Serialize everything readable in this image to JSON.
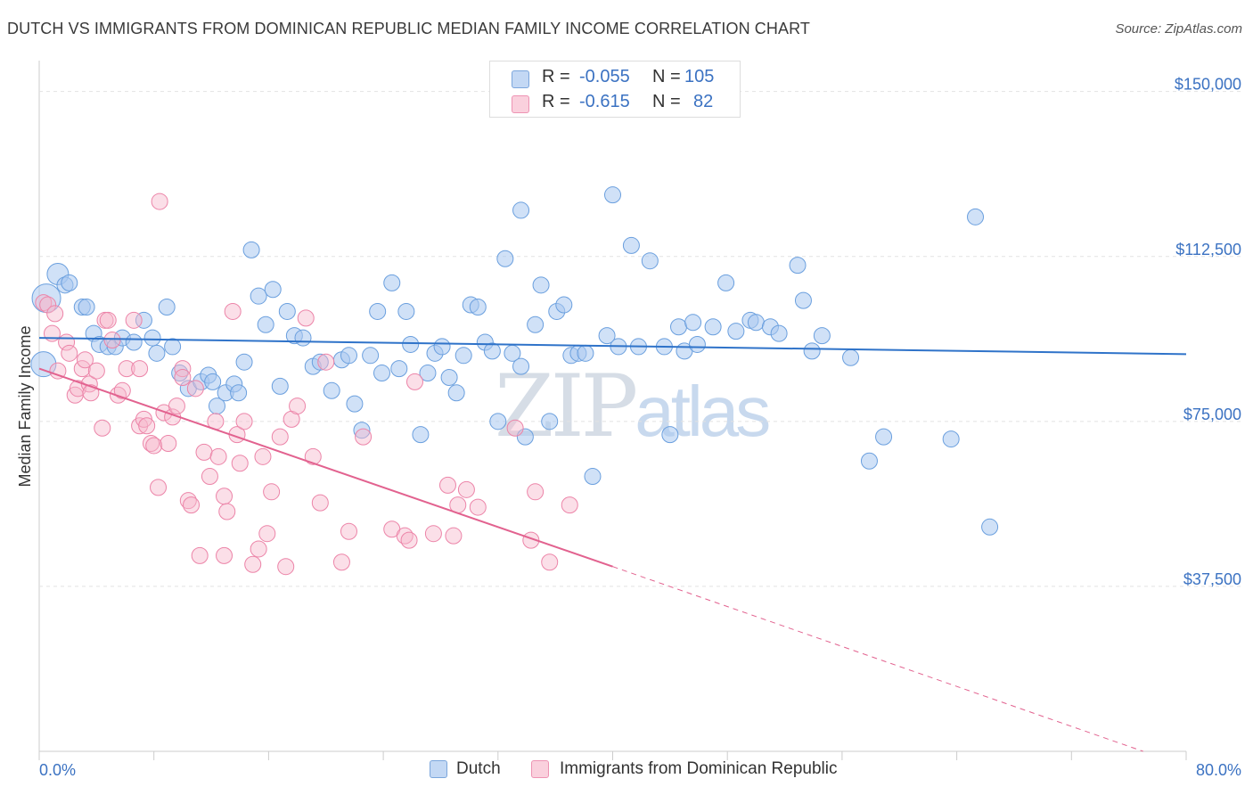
{
  "header": {
    "title": "DUTCH VS IMMIGRANTS FROM DOMINICAN REPUBLIC MEDIAN FAMILY INCOME CORRELATION CHART",
    "source": "Source: ZipAtlas.com"
  },
  "watermark": {
    "zip": "ZIP",
    "atlas": "atlas"
  },
  "legend": {
    "rows": [
      {
        "r_label": "R =",
        "r_value": "-0.055",
        "n_label": "N =",
        "n_value": "105",
        "color": "#a9c8f0"
      },
      {
        "r_label": "R =",
        "r_value": "-0.615",
        "n_label": "N =",
        "n_value": "82",
        "color": "#f6b8cc"
      }
    ]
  },
  "bottom_legend": {
    "items": [
      {
        "label": "Dutch",
        "color": "#a9c8f0"
      },
      {
        "label": "Immigrants from Dominican Republic",
        "color": "#f6b8cc"
      }
    ]
  },
  "chart_data": {
    "type": "scatter",
    "title": "DUTCH VS IMMIGRANTS FROM DOMINICAN REPUBLIC MEDIAN FAMILY INCOME CORRELATION CHART",
    "xlabel": "",
    "ylabel": "Median Family Income",
    "xlim": [
      0,
      80
    ],
    "ylim": [
      0,
      155000
    ],
    "x_tick_labels": [
      "0.0%",
      "80.0%"
    ],
    "y_ticks": [
      37500,
      75000,
      112500,
      150000
    ],
    "y_tick_labels": [
      "$37,500",
      "$75,000",
      "$112,500",
      "$150,000"
    ],
    "grid": true,
    "colors": {
      "dutch": "#6a9fde",
      "dominican": "#ec84a8",
      "dutch_line": "#2f73c9",
      "dominican_line": "#e2628f",
      "tick_label": "#3b72c2"
    },
    "series": [
      {
        "name": "Dutch",
        "trend": {
          "x": [
            0,
            80
          ],
          "y": [
            94000,
            90300
          ]
        },
        "points": [
          [
            0.3,
            88000
          ],
          [
            0.5,
            103000
          ],
          [
            1.3,
            108500
          ],
          [
            1.8,
            106000
          ],
          [
            2.1,
            106500
          ],
          [
            3.0,
            101000
          ],
          [
            3.3,
            101000
          ],
          [
            3.8,
            95000
          ],
          [
            4.2,
            92500
          ],
          [
            4.8,
            92000
          ],
          [
            5.3,
            92000
          ],
          [
            5.8,
            94000
          ],
          [
            6.6,
            93000
          ],
          [
            7.3,
            98000
          ],
          [
            7.9,
            94000
          ],
          [
            8.2,
            90500
          ],
          [
            8.9,
            101000
          ],
          [
            9.3,
            92000
          ],
          [
            9.8,
            86000
          ],
          [
            10.4,
            82500
          ],
          [
            11.3,
            84000
          ],
          [
            11.8,
            85500
          ],
          [
            12.1,
            84000
          ],
          [
            12.4,
            78500
          ],
          [
            13.0,
            81500
          ],
          [
            13.6,
            83500
          ],
          [
            13.9,
            81500
          ],
          [
            14.3,
            88500
          ],
          [
            14.8,
            114000
          ],
          [
            15.3,
            103500
          ],
          [
            15.8,
            97000
          ],
          [
            16.3,
            105000
          ],
          [
            16.8,
            83000
          ],
          [
            17.3,
            100000
          ],
          [
            17.8,
            94500
          ],
          [
            18.4,
            94000
          ],
          [
            19.1,
            87500
          ],
          [
            19.6,
            88500
          ],
          [
            20.4,
            82000
          ],
          [
            21.1,
            89000
          ],
          [
            21.6,
            90000
          ],
          [
            22.0,
            79000
          ],
          [
            22.5,
            73000
          ],
          [
            23.1,
            90000
          ],
          [
            23.6,
            100000
          ],
          [
            23.9,
            86000
          ],
          [
            24.6,
            106500
          ],
          [
            25.1,
            87000
          ],
          [
            25.6,
            100000
          ],
          [
            25.9,
            92500
          ],
          [
            26.6,
            72000
          ],
          [
            27.1,
            86000
          ],
          [
            27.6,
            90500
          ],
          [
            28.1,
            92000
          ],
          [
            28.6,
            85000
          ],
          [
            29.1,
            81500
          ],
          [
            29.6,
            90000
          ],
          [
            30.1,
            101500
          ],
          [
            30.6,
            101000
          ],
          [
            31.1,
            93000
          ],
          [
            31.6,
            91000
          ],
          [
            32.0,
            75000
          ],
          [
            32.5,
            112000
          ],
          [
            33.0,
            90500
          ],
          [
            33.6,
            87500
          ],
          [
            34.6,
            97000
          ],
          [
            35.0,
            106000
          ],
          [
            35.6,
            75000
          ],
          [
            36.1,
            100000
          ],
          [
            36.6,
            101500
          ],
          [
            37.1,
            90000
          ],
          [
            37.6,
            90500
          ],
          [
            38.1,
            90500
          ],
          [
            38.6,
            62500
          ],
          [
            39.6,
            94500
          ],
          [
            40.0,
            126500
          ],
          [
            40.4,
            92000
          ],
          [
            41.3,
            115000
          ],
          [
            41.8,
            92000
          ],
          [
            42.6,
            111500
          ],
          [
            43.6,
            92000
          ],
          [
            44.0,
            72000
          ],
          [
            44.6,
            96500
          ],
          [
            45.0,
            91000
          ],
          [
            45.6,
            97500
          ],
          [
            45.9,
            92500
          ],
          [
            47.0,
            96500
          ],
          [
            47.9,
            106500
          ],
          [
            48.6,
            95500
          ],
          [
            49.6,
            98000
          ],
          [
            50.0,
            97500
          ],
          [
            51.0,
            96500
          ],
          [
            51.6,
            95000
          ],
          [
            52.9,
            110500
          ],
          [
            53.3,
            102500
          ],
          [
            53.9,
            91000
          ],
          [
            54.6,
            94500
          ],
          [
            56.6,
            89500
          ],
          [
            57.9,
            66000
          ],
          [
            58.9,
            71500
          ],
          [
            63.6,
            71000
          ],
          [
            65.3,
            121500
          ],
          [
            66.3,
            51000
          ],
          [
            33.6,
            123000
          ],
          [
            33.9,
            71500
          ]
        ]
      },
      {
        "name": "Immigrants from Dominican Republic",
        "trend": {
          "x": [
            0,
            40
          ],
          "y": [
            87000,
            42000
          ],
          "dashed_to": {
            "x": 77,
            "y": 0
          }
        },
        "points": [
          [
            0.3,
            102000
          ],
          [
            0.6,
            101500
          ],
          [
            0.9,
            95000
          ],
          [
            1.1,
            99500
          ],
          [
            1.3,
            86500
          ],
          [
            1.9,
            93000
          ],
          [
            2.1,
            90500
          ],
          [
            2.5,
            81000
          ],
          [
            2.7,
            82500
          ],
          [
            3.0,
            87000
          ],
          [
            3.2,
            89000
          ],
          [
            3.5,
            83500
          ],
          [
            3.6,
            81500
          ],
          [
            4.0,
            86500
          ],
          [
            4.4,
            73500
          ],
          [
            4.6,
            98000
          ],
          [
            4.8,
            98000
          ],
          [
            5.1,
            93500
          ],
          [
            5.5,
            81000
          ],
          [
            5.8,
            82000
          ],
          [
            6.1,
            87000
          ],
          [
            6.6,
            98000
          ],
          [
            7.0,
            74000
          ],
          [
            7.3,
            75500
          ],
          [
            7.5,
            74000
          ],
          [
            7.8,
            70000
          ],
          [
            8.0,
            69500
          ],
          [
            8.3,
            60000
          ],
          [
            8.7,
            77000
          ],
          [
            9.0,
            70000
          ],
          [
            9.3,
            76000
          ],
          [
            9.6,
            78500
          ],
          [
            10.0,
            87000
          ],
          [
            10.4,
            57000
          ],
          [
            10.6,
            56000
          ],
          [
            10.9,
            82500
          ],
          [
            11.2,
            44500
          ],
          [
            11.5,
            68000
          ],
          [
            11.9,
            62500
          ],
          [
            12.3,
            75000
          ],
          [
            12.5,
            67000
          ],
          [
            12.9,
            44500
          ],
          [
            12.9,
            58000
          ],
          [
            13.1,
            54500
          ],
          [
            13.5,
            100000
          ],
          [
            13.8,
            72000
          ],
          [
            14.0,
            65500
          ],
          [
            14.3,
            75000
          ],
          [
            14.9,
            42500
          ],
          [
            15.3,
            46000
          ],
          [
            15.6,
            67000
          ],
          [
            15.9,
            49500
          ],
          [
            16.2,
            59000
          ],
          [
            16.8,
            71500
          ],
          [
            17.2,
            42000
          ],
          [
            17.6,
            75500
          ],
          [
            18.0,
            78500
          ],
          [
            18.6,
            98500
          ],
          [
            19.1,
            67000
          ],
          [
            19.6,
            56500
          ],
          [
            20.0,
            88500
          ],
          [
            21.1,
            43000
          ],
          [
            21.6,
            50000
          ],
          [
            22.6,
            71500
          ],
          [
            24.6,
            50500
          ],
          [
            25.5,
            49000
          ],
          [
            25.8,
            48000
          ],
          [
            26.2,
            84000
          ],
          [
            27.5,
            49500
          ],
          [
            28.5,
            60500
          ],
          [
            28.9,
            49000
          ],
          [
            29.2,
            56000
          ],
          [
            29.8,
            59500
          ],
          [
            30.6,
            55500
          ],
          [
            33.2,
            73500
          ],
          [
            34.3,
            48000
          ],
          [
            34.6,
            59000
          ],
          [
            35.6,
            43000
          ],
          [
            37.0,
            56000
          ],
          [
            8.4,
            125000
          ],
          [
            7.0,
            87000
          ],
          [
            10.0,
            85000
          ]
        ]
      }
    ]
  }
}
